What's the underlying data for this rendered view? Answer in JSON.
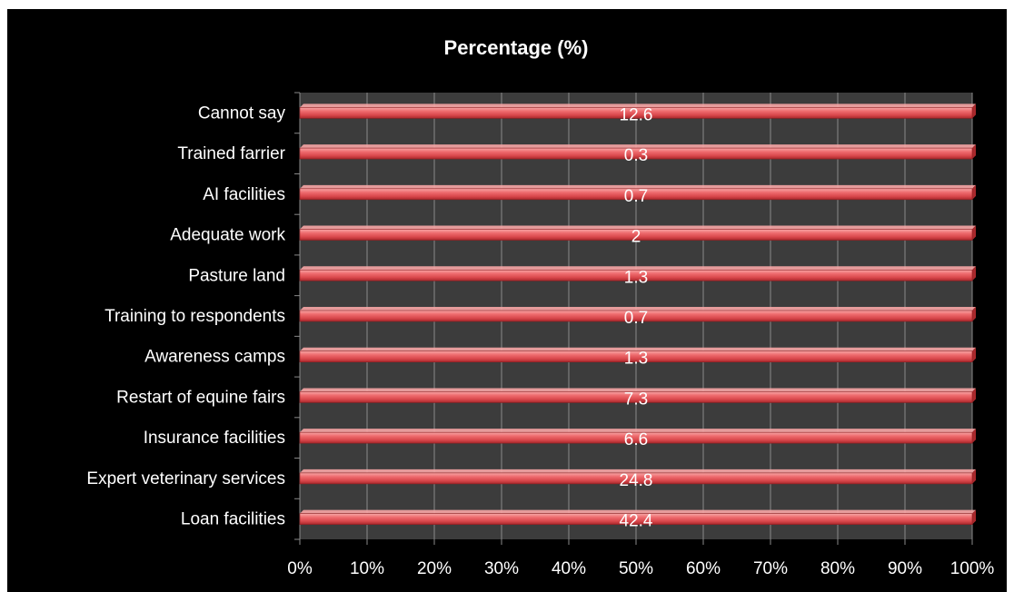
{
  "chart_data": {
    "type": "bar",
    "orientation": "horizontal",
    "stacking": "100%",
    "title": "Percentage (%)",
    "categories": [
      "Loan facilities",
      "Expert veterinary services",
      "Insurance facilities",
      "Restart of equine fairs",
      "Awareness camps",
      "Training to respondents",
      "Pasture land",
      "Adequate work",
      "AI facilities",
      "Trained farrier",
      "Cannot say"
    ],
    "values": [
      42.4,
      24.8,
      6.6,
      7.3,
      1.3,
      0.7,
      1.3,
      2,
      0.7,
      0.3,
      12.6
    ],
    "data_labels": [
      "42.4",
      "24.8",
      "6.6",
      "7.3",
      "1.3",
      "0.7",
      "1.3",
      "2",
      "0.7",
      "0.3",
      "12.6"
    ],
    "xlim": [
      0,
      100
    ],
    "x_ticks": [
      "0%",
      "10%",
      "20%",
      "30%",
      "40%",
      "50%",
      "60%",
      "70%",
      "80%",
      "90%",
      "100%"
    ],
    "grid": true,
    "legend": "none",
    "colors": {
      "background": "#000000",
      "plot_area": "#3c3c3c",
      "bar": "#e8585c",
      "bar_light": "#f7a5a5",
      "bar_dark": "#a9282c",
      "grid": "#8a8a8a",
      "text": "#ffffff"
    }
  }
}
